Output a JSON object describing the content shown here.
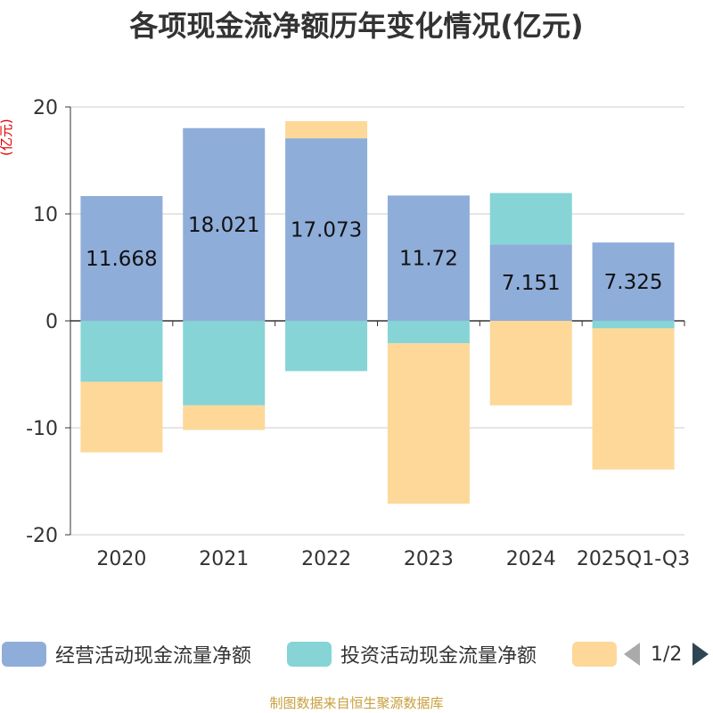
{
  "title": "各项现金流净额历年变化情况(亿元)",
  "unit_label": "(亿元)",
  "source": "制图数据来自恒生聚源数据库",
  "legend": {
    "items": [
      {
        "label": "经营活动现金流量净额",
        "color": "#8fadd9"
      },
      {
        "label": "投资活动现金流量净额",
        "color": "#86d4d6"
      },
      {
        "label": "",
        "color": "#fdd898"
      }
    ],
    "pager": "1/2"
  },
  "chart_data": {
    "type": "bar",
    "stacked": true,
    "categories": [
      "2020",
      "2021",
      "2022",
      "2023",
      "2024",
      "2025Q1-Q3"
    ],
    "ylim": [
      -20,
      20
    ],
    "yticks": [
      20,
      10,
      0,
      -10,
      -20
    ],
    "grid": true,
    "series": [
      {
        "name": "经营活动现金流量净额",
        "color": "#8fadd9",
        "values": [
          11.668,
          18.021,
          17.073,
          11.72,
          7.151,
          7.325
        ],
        "show_labels": true
      },
      {
        "name": "投资活动现金流量净额",
        "color": "#86d4d6",
        "values": [
          -5.7,
          -7.9,
          -4.7,
          -2.1,
          4.8,
          -0.7
        ],
        "show_labels": false
      },
      {
        "name": "",
        "color": "#fdd898",
        "values": [
          -6.6,
          -2.3,
          1.6,
          -15.0,
          -7.9,
          -13.2
        ],
        "show_labels": false
      }
    ]
  }
}
